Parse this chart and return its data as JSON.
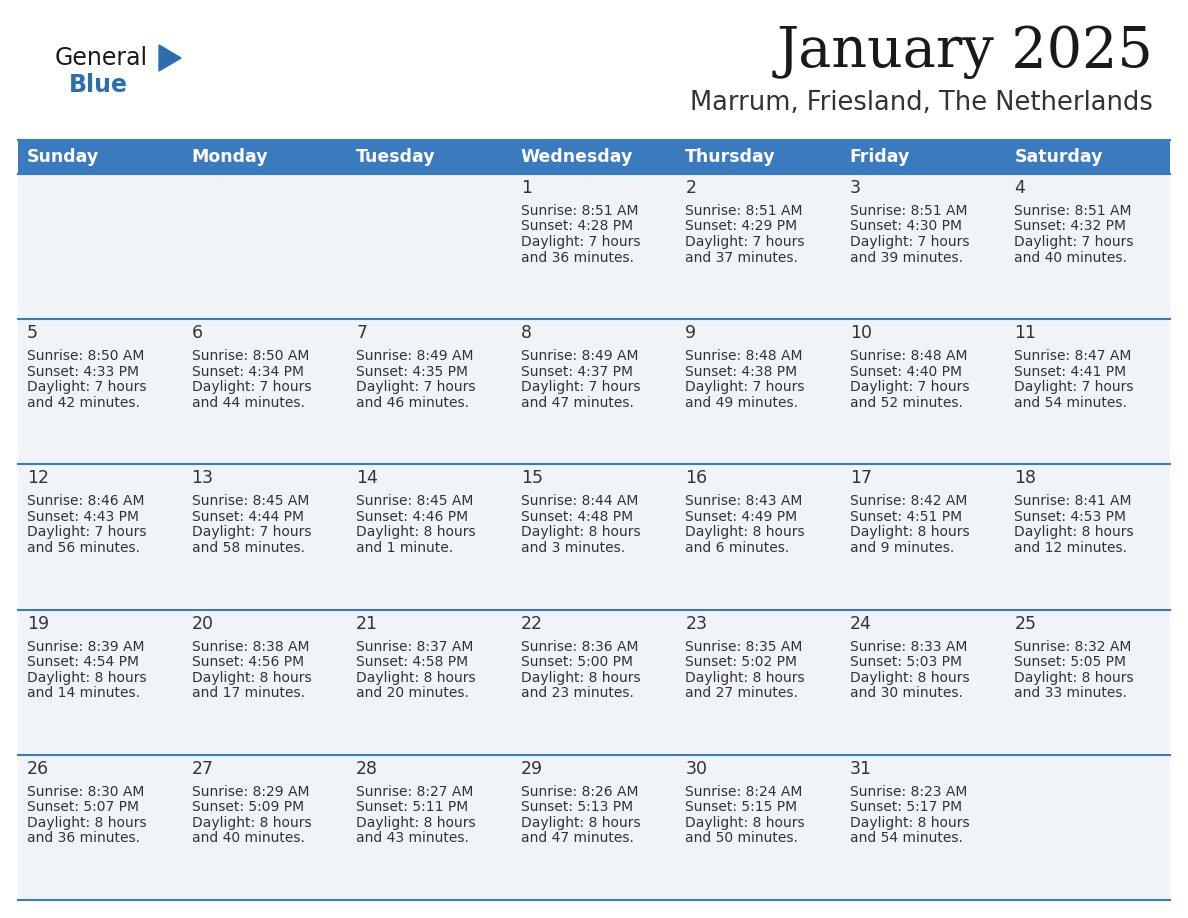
{
  "title": "January 2025",
  "subtitle": "Marrum, Friesland, The Netherlands",
  "days_of_week": [
    "Sunday",
    "Monday",
    "Tuesday",
    "Wednesday",
    "Thursday",
    "Friday",
    "Saturday"
  ],
  "header_bg": "#3a7abf",
  "header_text": "#ffffff",
  "row_bg": "#f0f4f8",
  "cell_text_color": "#333333",
  "day_num_color": "#333333",
  "border_color": "#3a7abf",
  "title_color": "#1a1a1a",
  "subtitle_color": "#333333",
  "calendar_data": [
    [
      null,
      null,
      null,
      {
        "day": 1,
        "sunrise": "8:51 AM",
        "sunset": "4:28 PM",
        "daylight": "7 hours and 36 minutes"
      },
      {
        "day": 2,
        "sunrise": "8:51 AM",
        "sunset": "4:29 PM",
        "daylight": "7 hours and 37 minutes"
      },
      {
        "day": 3,
        "sunrise": "8:51 AM",
        "sunset": "4:30 PM",
        "daylight": "7 hours and 39 minutes"
      },
      {
        "day": 4,
        "sunrise": "8:51 AM",
        "sunset": "4:32 PM",
        "daylight": "7 hours and 40 minutes"
      }
    ],
    [
      {
        "day": 5,
        "sunrise": "8:50 AM",
        "sunset": "4:33 PM",
        "daylight": "7 hours and 42 minutes"
      },
      {
        "day": 6,
        "sunrise": "8:50 AM",
        "sunset": "4:34 PM",
        "daylight": "7 hours and 44 minutes"
      },
      {
        "day": 7,
        "sunrise": "8:49 AM",
        "sunset": "4:35 PM",
        "daylight": "7 hours and 46 minutes"
      },
      {
        "day": 8,
        "sunrise": "8:49 AM",
        "sunset": "4:37 PM",
        "daylight": "7 hours and 47 minutes"
      },
      {
        "day": 9,
        "sunrise": "8:48 AM",
        "sunset": "4:38 PM",
        "daylight": "7 hours and 49 minutes"
      },
      {
        "day": 10,
        "sunrise": "8:48 AM",
        "sunset": "4:40 PM",
        "daylight": "7 hours and 52 minutes"
      },
      {
        "day": 11,
        "sunrise": "8:47 AM",
        "sunset": "4:41 PM",
        "daylight": "7 hours and 54 minutes"
      }
    ],
    [
      {
        "day": 12,
        "sunrise": "8:46 AM",
        "sunset": "4:43 PM",
        "daylight": "7 hours and 56 minutes"
      },
      {
        "day": 13,
        "sunrise": "8:45 AM",
        "sunset": "4:44 PM",
        "daylight": "7 hours and 58 minutes"
      },
      {
        "day": 14,
        "sunrise": "8:45 AM",
        "sunset": "4:46 PM",
        "daylight": "8 hours and 1 minute"
      },
      {
        "day": 15,
        "sunrise": "8:44 AM",
        "sunset": "4:48 PM",
        "daylight": "8 hours and 3 minutes"
      },
      {
        "day": 16,
        "sunrise": "8:43 AM",
        "sunset": "4:49 PM",
        "daylight": "8 hours and 6 minutes"
      },
      {
        "day": 17,
        "sunrise": "8:42 AM",
        "sunset": "4:51 PM",
        "daylight": "8 hours and 9 minutes"
      },
      {
        "day": 18,
        "sunrise": "8:41 AM",
        "sunset": "4:53 PM",
        "daylight": "8 hours and 12 minutes"
      }
    ],
    [
      {
        "day": 19,
        "sunrise": "8:39 AM",
        "sunset": "4:54 PM",
        "daylight": "8 hours and 14 minutes"
      },
      {
        "day": 20,
        "sunrise": "8:38 AM",
        "sunset": "4:56 PM",
        "daylight": "8 hours and 17 minutes"
      },
      {
        "day": 21,
        "sunrise": "8:37 AM",
        "sunset": "4:58 PM",
        "daylight": "8 hours and 20 minutes"
      },
      {
        "day": 22,
        "sunrise": "8:36 AM",
        "sunset": "5:00 PM",
        "daylight": "8 hours and 23 minutes"
      },
      {
        "day": 23,
        "sunrise": "8:35 AM",
        "sunset": "5:02 PM",
        "daylight": "8 hours and 27 minutes"
      },
      {
        "day": 24,
        "sunrise": "8:33 AM",
        "sunset": "5:03 PM",
        "daylight": "8 hours and 30 minutes"
      },
      {
        "day": 25,
        "sunrise": "8:32 AM",
        "sunset": "5:05 PM",
        "daylight": "8 hours and 33 minutes"
      }
    ],
    [
      {
        "day": 26,
        "sunrise": "8:30 AM",
        "sunset": "5:07 PM",
        "daylight": "8 hours and 36 minutes"
      },
      {
        "day": 27,
        "sunrise": "8:29 AM",
        "sunset": "5:09 PM",
        "daylight": "8 hours and 40 minutes"
      },
      {
        "day": 28,
        "sunrise": "8:27 AM",
        "sunset": "5:11 PM",
        "daylight": "8 hours and 43 minutes"
      },
      {
        "day": 29,
        "sunrise": "8:26 AM",
        "sunset": "5:13 PM",
        "daylight": "8 hours and 47 minutes"
      },
      {
        "day": 30,
        "sunrise": "8:24 AM",
        "sunset": "5:15 PM",
        "daylight": "8 hours and 50 minutes"
      },
      {
        "day": 31,
        "sunrise": "8:23 AM",
        "sunset": "5:17 PM",
        "daylight": "8 hours and 54 minutes"
      },
      null
    ]
  ],
  "logo_text_general": "General",
  "logo_text_blue": "Blue",
  "logo_color_general": "#1a1a1a",
  "logo_color_blue": "#2b6fad",
  "triangle_color": "#2b6fad",
  "fig_width": 11.88,
  "fig_height": 9.18,
  "dpi": 100
}
